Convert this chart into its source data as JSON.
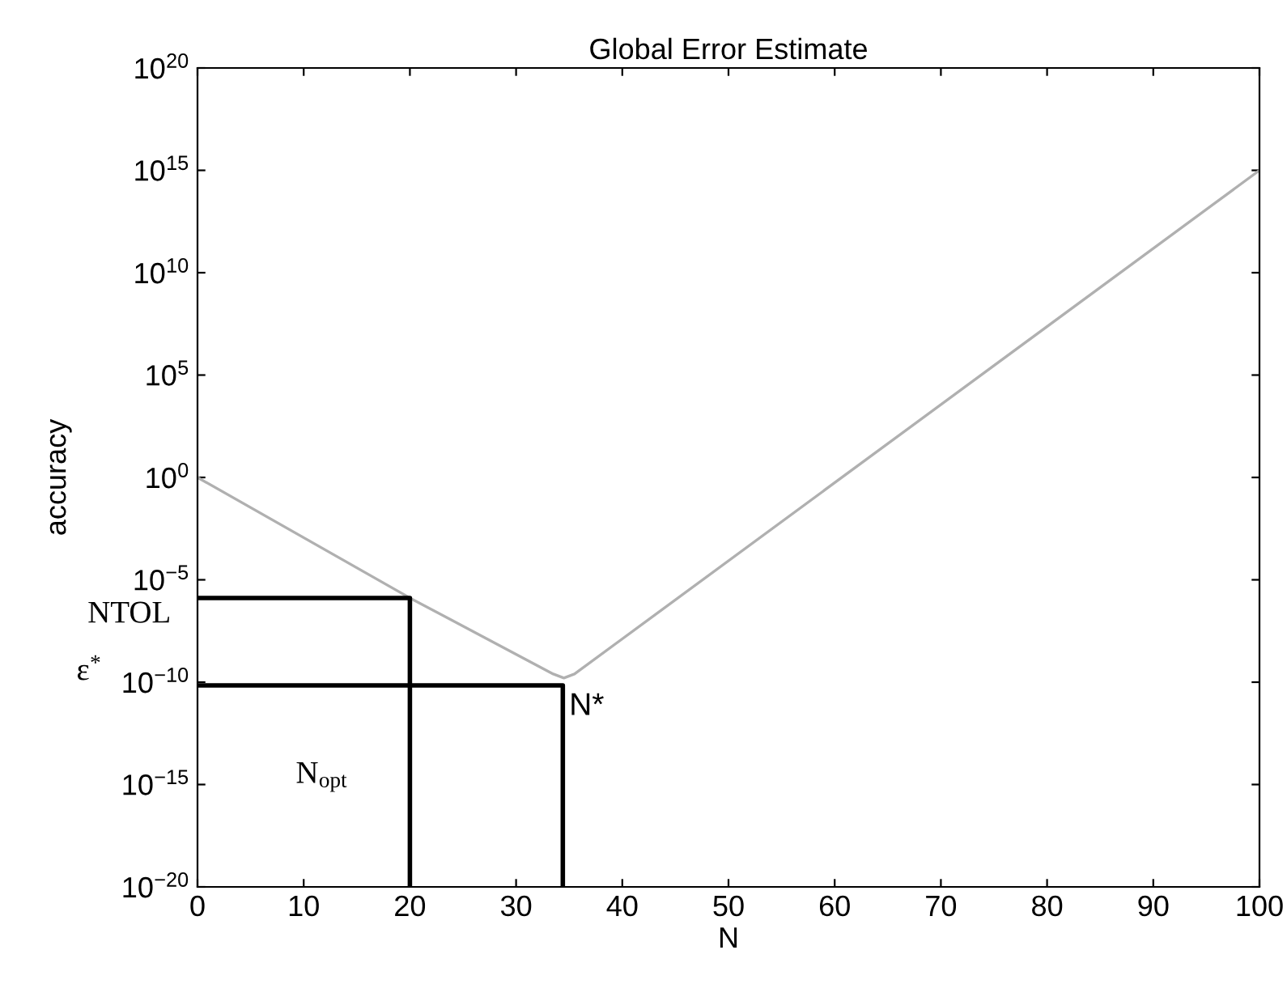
{
  "chart_data": {
    "type": "line",
    "title": "Global Error Estimate",
    "xlabel": "N",
    "ylabel": "accuracy",
    "log": "y",
    "grid": false,
    "xlim": [
      0,
      100
    ],
    "xticks": [
      0,
      10,
      20,
      30,
      40,
      50,
      60,
      70,
      80,
      90,
      100
    ],
    "ylim": [
      1e-20,
      1e+20
    ],
    "yticks": [
      {
        "value": 1e-20,
        "label": "10$^{−20}$"
      },
      {
        "value": 1e-15,
        "label": "10$^{−15}$"
      },
      {
        "value": 1e-10,
        "label": "10$^{−10}$"
      },
      {
        "value": 1e-05,
        "label": "10$^{−5}$"
      },
      {
        "value": 1,
        "label": "10$^{0}$"
      },
      {
        "value": 100000.0,
        "label": "10$^{5}$"
      },
      {
        "value": 10000000000.0,
        "label": "10$^{10}$"
      },
      {
        "value": 1000000000000000.0,
        "label": "10$^{15}$"
      },
      {
        "value": 1e+20,
        "label": "10$^{20}$"
      }
    ],
    "series": [
      {
        "color": "#b0b0b0",
        "x": [
          0,
          20,
          33.5,
          34.5,
          35.5,
          100
        ],
        "values": [
          1,
          1.3e-06,
          2.5e-10,
          1.6e-10,
          2.5e-10,
          1000000000000000.0
        ]
      },
      {
        "color": "#000000",
        "x": [
          0,
          20,
          20
        ],
        "values": [
          1.3e-06,
          1.3e-06,
          1e-20
        ]
      },
      {
        "color": "#000000",
        "x": [
          0,
          34.4,
          34.4
        ],
        "values": [
          7e-11,
          7e-11,
          1e-20
        ]
      }
    ],
    "annotations": [
      "NTOL",
      "ε$^{*}$",
      "N$_{opt}$",
      "N*"
    ]
  }
}
